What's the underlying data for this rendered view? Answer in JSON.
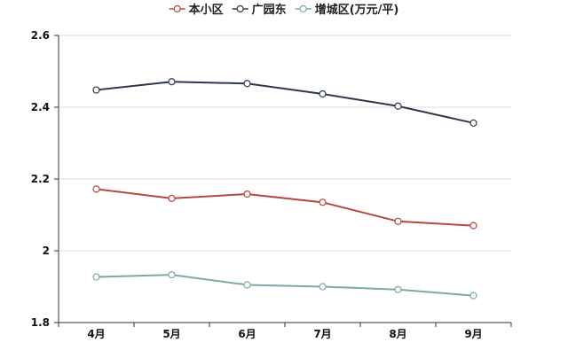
{
  "chart_data": {
    "type": "line",
    "categories": [
      "4月",
      "5月",
      "6月",
      "7月",
      "8月",
      "9月"
    ],
    "series": [
      {
        "name": "本小区",
        "color": "#b5473b",
        "values": [
          2.172,
          2.146,
          2.158,
          2.135,
          2.082,
          2.07
        ]
      },
      {
        "name": "广园东",
        "color": "#2b3a4a",
        "values": [
          2.448,
          2.471,
          2.466,
          2.437,
          2.403,
          2.356
        ]
      },
      {
        "name": "增城区(万元/平)",
        "color": "#7aa9ab",
        "values": [
          1.927,
          1.933,
          1.905,
          1.9,
          1.892,
          1.875
        ]
      }
    ],
    "yticks": [
      "1.8",
      "2",
      "2.2",
      "2.4",
      "2.6"
    ],
    "ylim": [
      1.8,
      2.6
    ],
    "grid": true,
    "legend": "top-center"
  }
}
